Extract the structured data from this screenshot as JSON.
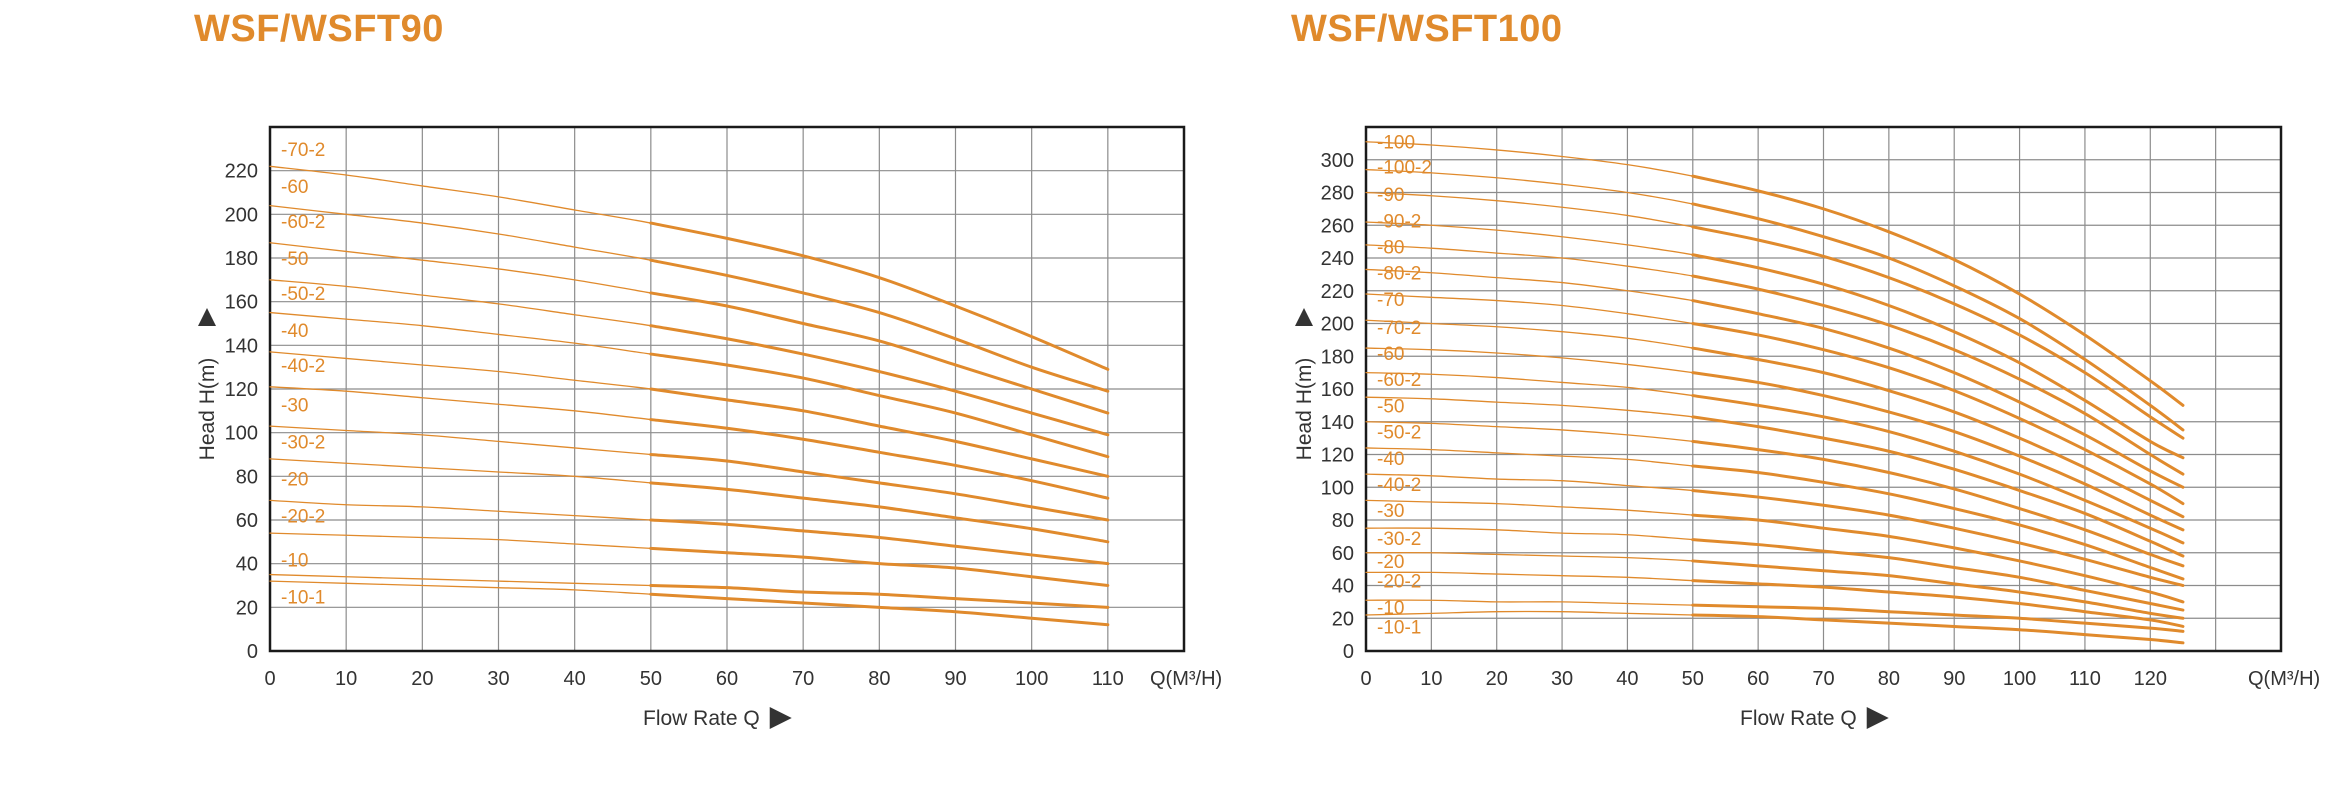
{
  "colors": {
    "title": "#e08a2c",
    "curve": "#e08a2c",
    "grid": "#8c8c8c",
    "frame": "#1a1a1a",
    "text": "#333333"
  },
  "chart_data": [
    {
      "type": "line",
      "title": "WSF/WSFT90",
      "xlabel": "Flow Rate Q",
      "ylabel": "Head H(m)",
      "x_unit": "Q(M³/H)",
      "xlim": [
        0,
        120
      ],
      "ylim": [
        0,
        240
      ],
      "x_ticks": [
        0,
        10,
        20,
        30,
        40,
        50,
        60,
        70,
        80,
        90,
        100,
        110
      ],
      "y_ticks": [
        0,
        20,
        40,
        60,
        80,
        100,
        120,
        140,
        160,
        180,
        200,
        220
      ],
      "grid": true,
      "x": [
        0,
        10,
        20,
        30,
        40,
        50,
        60,
        70,
        80,
        90,
        100,
        110
      ],
      "operating_range_start": 50,
      "series": [
        {
          "name": "-70-2",
          "label_y": 230,
          "values": [
            222,
            218,
            213,
            208,
            202,
            196,
            189,
            181,
            171,
            158,
            144,
            129
          ]
        },
        {
          "name": "-60",
          "label_y": 213,
          "values": [
            204,
            200,
            196,
            191,
            185,
            179,
            172,
            164,
            155,
            143,
            130,
            119
          ]
        },
        {
          "name": "-60-2",
          "label_y": 197,
          "values": [
            187,
            183,
            179,
            175,
            170,
            164,
            158,
            150,
            142,
            131,
            120,
            109
          ]
        },
        {
          "name": "-50",
          "label_y": 180,
          "values": [
            170,
            167,
            163,
            159,
            154,
            149,
            143,
            136,
            128,
            119,
            109,
            99
          ]
        },
        {
          "name": "-50-2",
          "label_y": 164,
          "values": [
            155,
            152,
            149,
            145,
            141,
            136,
            131,
            125,
            117,
            109,
            99,
            89
          ]
        },
        {
          "name": "-40",
          "label_y": 147,
          "values": [
            137,
            134,
            131,
            128,
            124,
            120,
            115,
            110,
            103,
            96,
            88,
            80
          ]
        },
        {
          "name": "-40-2",
          "label_y": 131,
          "values": [
            121,
            119,
            116,
            113,
            110,
            106,
            102,
            97,
            91,
            85,
            78,
            70
          ]
        },
        {
          "name": "-30",
          "label_y": 113,
          "values": [
            103,
            101,
            99,
            96,
            93,
            90,
            87,
            82,
            77,
            72,
            66,
            60
          ]
        },
        {
          "name": "-30-2",
          "label_y": 96,
          "values": [
            88,
            86,
            84,
            82,
            80,
            77,
            74,
            70,
            66,
            61,
            56,
            50
          ]
        },
        {
          "name": "-20",
          "label_y": 79,
          "values": [
            69,
            67,
            66,
            64,
            62,
            60,
            58,
            55,
            52,
            48,
            44,
            40
          ]
        },
        {
          "name": "-20-2",
          "label_y": 62,
          "values": [
            54,
            53,
            52,
            51,
            49,
            47,
            45,
            43,
            40,
            38,
            34,
            30
          ]
        },
        {
          "name": "-10",
          "label_y": 42,
          "values": [
            35,
            34,
            33,
            32,
            31,
            30,
            29,
            27,
            26,
            24,
            22,
            20
          ]
        },
        {
          "name": "-10-1",
          "label_y": 25,
          "values": [
            32,
            31,
            30,
            29,
            28,
            26,
            24,
            22,
            20,
            18,
            15,
            12
          ]
        }
      ]
    },
    {
      "type": "line",
      "title": "WSF/WSFT100",
      "xlabel": "Flow Rate Q",
      "ylabel": "Head H(m)",
      "x_unit": "Q(M³/H)",
      "xlim": [
        0,
        140
      ],
      "ylim": [
        0,
        320
      ],
      "x_ticks": [
        0,
        10,
        20,
        30,
        40,
        50,
        60,
        70,
        80,
        90,
        100,
        110,
        120
      ],
      "y_ticks": [
        0,
        20,
        40,
        60,
        80,
        100,
        120,
        140,
        160,
        180,
        200,
        220,
        240,
        260,
        280,
        300
      ],
      "grid": true,
      "x": [
        0,
        10,
        20,
        30,
        40,
        50,
        60,
        70,
        80,
        90,
        100,
        110,
        120,
        125
      ],
      "operating_range_start": 50,
      "series": [
        {
          "name": "-100",
          "label_y": 311,
          "values": [
            311,
            309,
            306,
            302,
            297,
            290,
            281,
            270,
            256,
            239,
            218,
            193,
            165,
            150
          ]
        },
        {
          "name": "-100-2",
          "label_y": 296,
          "values": [
            294,
            292,
            289,
            285,
            280,
            273,
            264,
            253,
            240,
            223,
            203,
            178,
            150,
            135
          ]
        },
        {
          "name": "-90",
          "label_y": 279,
          "values": [
            280,
            278,
            275,
            271,
            266,
            259,
            251,
            241,
            228,
            212,
            193,
            170,
            143,
            130
          ]
        },
        {
          "name": "-90-2",
          "label_y": 263,
          "values": [
            262,
            260,
            257,
            253,
            248,
            242,
            234,
            224,
            211,
            195,
            176,
            153,
            128,
            118
          ]
        },
        {
          "name": "-80",
          "label_y": 247,
          "values": [
            248,
            246,
            243,
            240,
            235,
            229,
            221,
            211,
            199,
            184,
            166,
            145,
            120,
            108
          ]
        },
        {
          "name": "-80-2",
          "label_y": 231,
          "values": [
            233,
            231,
            228,
            225,
            220,
            214,
            206,
            197,
            185,
            170,
            152,
            132,
            110,
            100
          ]
        },
        {
          "name": "-70",
          "label_y": 215,
          "values": [
            218,
            216,
            214,
            211,
            206,
            200,
            193,
            184,
            173,
            159,
            142,
            123,
            102,
            90
          ]
        },
        {
          "name": "-70-2",
          "label_y": 198,
          "values": [
            202,
            200,
            198,
            195,
            191,
            185,
            178,
            170,
            159,
            146,
            130,
            112,
            92,
            82
          ]
        },
        {
          "name": "-60",
          "label_y": 182,
          "values": [
            185,
            184,
            182,
            179,
            175,
            170,
            164,
            156,
            146,
            134,
            119,
            102,
            83,
            74
          ]
        },
        {
          "name": "-60-2",
          "label_y": 166,
          "values": [
            170,
            169,
            167,
            164,
            161,
            156,
            150,
            143,
            134,
            122,
            108,
            92,
            75,
            66
          ]
        },
        {
          "name": "-50",
          "label_y": 150,
          "values": [
            155,
            154,
            152,
            150,
            147,
            143,
            137,
            130,
            122,
            111,
            98,
            84,
            67,
            58
          ]
        },
        {
          "name": "-50-2",
          "label_y": 134,
          "values": [
            140,
            139,
            137,
            135,
            132,
            128,
            123,
            117,
            109,
            99,
            87,
            74,
            59,
            52
          ]
        },
        {
          "name": "-40",
          "label_y": 118,
          "values": [
            124,
            123,
            121,
            119,
            117,
            113,
            109,
            103,
            96,
            87,
            77,
            65,
            51,
            44
          ]
        },
        {
          "name": "-40-2",
          "label_y": 102,
          "values": [
            108,
            107,
            105,
            104,
            101,
            98,
            94,
            89,
            83,
            75,
            66,
            56,
            45,
            40
          ]
        },
        {
          "name": "-30",
          "label_y": 86,
          "values": [
            92,
            91,
            90,
            88,
            86,
            83,
            80,
            75,
            70,
            63,
            55,
            46,
            36,
            30
          ]
        },
        {
          "name": "-30-2",
          "label_y": 69,
          "values": [
            75,
            75,
            74,
            72,
            71,
            68,
            65,
            61,
            57,
            51,
            45,
            37,
            29,
            25
          ]
        },
        {
          "name": "-20",
          "label_y": 55,
          "values": [
            60,
            60,
            59,
            58,
            57,
            55,
            52,
            49,
            46,
            41,
            36,
            30,
            23,
            20
          ]
        },
        {
          "name": "-20-2",
          "label_y": 43,
          "values": [
            48,
            48,
            47,
            46,
            45,
            43,
            41,
            39,
            36,
            33,
            29,
            24,
            19,
            15
          ]
        },
        {
          "name": "-10",
          "label_y": 27,
          "values": [
            31,
            31,
            30,
            30,
            29,
            28,
            27,
            26,
            24,
            22,
            20,
            17,
            14,
            12
          ]
        },
        {
          "name": "-10-1",
          "label_y": 15,
          "values": [
            22,
            23,
            24,
            24,
            23,
            22,
            21,
            19,
            17,
            15,
            13,
            10,
            7,
            5
          ]
        }
      ]
    }
  ]
}
